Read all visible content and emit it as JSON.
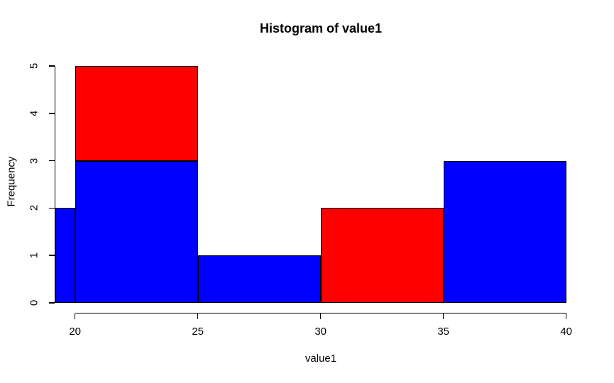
{
  "chart_data": {
    "type": "bar",
    "subtype": "histogram",
    "title": "Histogram of value1",
    "xlabel": "value1",
    "ylabel": "Frequency",
    "xlim": [
      19.2,
      40.8
    ],
    "ylim": [
      0,
      5
    ],
    "x_ticks": [
      "20",
      "25",
      "30",
      "35",
      "40"
    ],
    "x_tick_values": [
      20,
      25,
      30,
      35,
      40
    ],
    "y_ticks": [
      "0",
      "1",
      "2",
      "3",
      "4",
      "5"
    ],
    "y_tick_values": [
      0,
      1,
      2,
      3,
      4,
      5
    ],
    "grid": false,
    "legend": "none",
    "colors": {
      "red": "#FF0000",
      "blue": "#0000FF",
      "border": "#000000",
      "background": "#FFFFFF"
    },
    "bars": [
      {
        "from": 19.2,
        "to": 20,
        "note": "bin clipped at plot edge",
        "segments": [
          {
            "y0": 0,
            "y1": 2,
            "color": "#0000FF"
          }
        ]
      },
      {
        "from": 20,
        "to": 25,
        "segments": [
          {
            "y0": 0,
            "y1": 3,
            "color": "#0000FF"
          },
          {
            "y0": 3,
            "y1": 5,
            "color": "#FF0000"
          }
        ]
      },
      {
        "from": 25,
        "to": 30,
        "segments": [
          {
            "y0": 0,
            "y1": 1,
            "color": "#0000FF"
          }
        ]
      },
      {
        "from": 30,
        "to": 35,
        "segments": [
          {
            "y0": 0,
            "y1": 2,
            "color": "#FF0000"
          }
        ]
      },
      {
        "from": 35,
        "to": 40,
        "segments": [
          {
            "y0": 0,
            "y1": 3,
            "color": "#0000FF"
          }
        ]
      }
    ]
  }
}
